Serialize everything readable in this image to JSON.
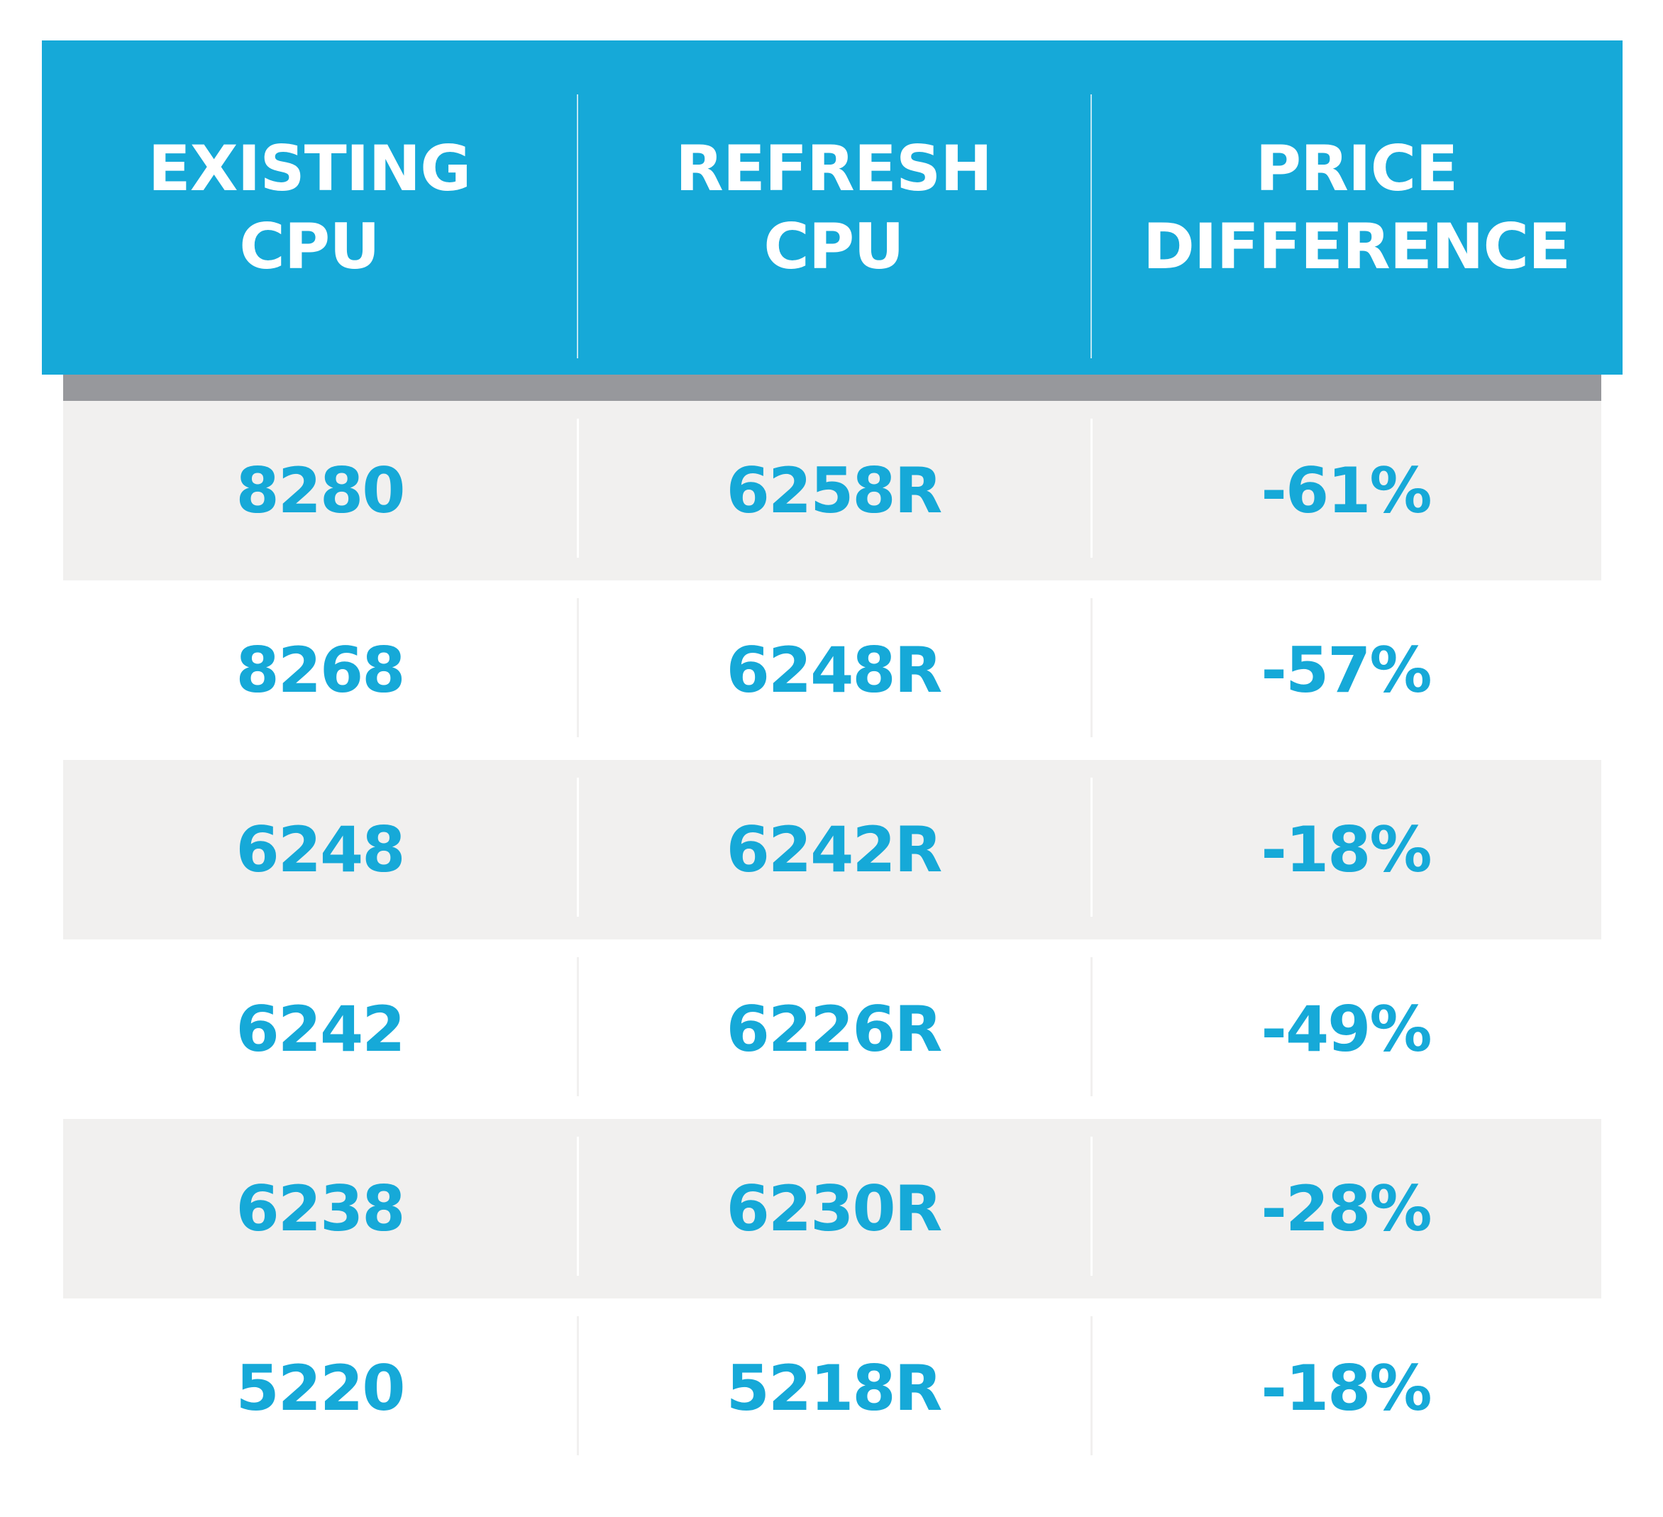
{
  "chart_data": {
    "type": "table",
    "columns": [
      "EXISTING\nCPU",
      "REFRESH\nCPU",
      "PRICE\nDIFFERENCE"
    ],
    "rows": [
      [
        "8280",
        "6258R",
        "-61%"
      ],
      [
        "8268",
        "6248R",
        "-57%"
      ],
      [
        "6248",
        "6242R",
        "-18%"
      ],
      [
        "6242",
        "6226R",
        "-49%"
      ],
      [
        "6238",
        "6230R",
        "-28%"
      ],
      [
        "5220",
        "5218R",
        "-18%"
      ]
    ],
    "colors": {
      "header_bg": "#16a9d8",
      "header_text": "#ffffff",
      "header_shadow": "#97989c",
      "row_shade": "#f1f0ef",
      "value_text": "#16a9d8"
    }
  }
}
